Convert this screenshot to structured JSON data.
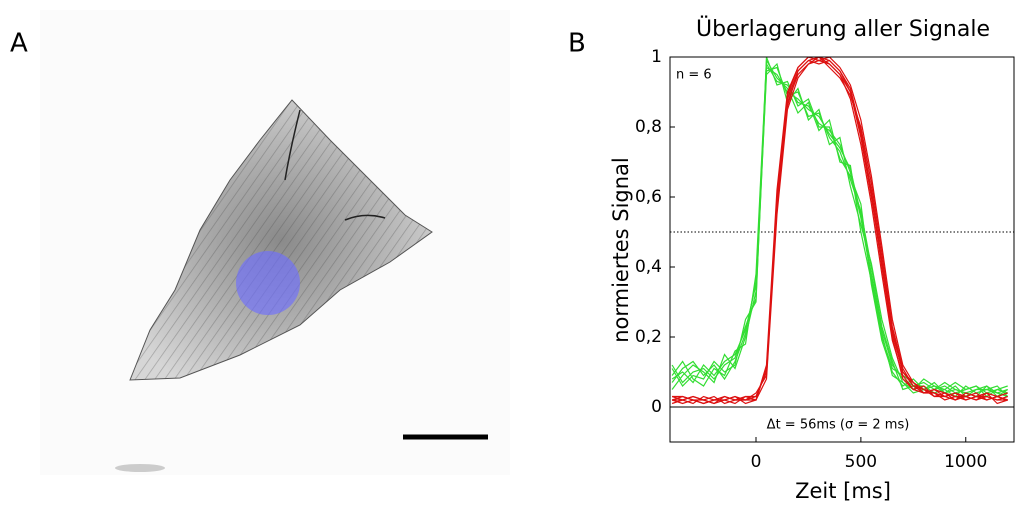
{
  "panel_labels": [
    "A",
    "B"
  ],
  "chart_data": {
    "type": "line",
    "title": "Überlagerung aller Signale",
    "xlabel": "Zeit [ms]",
    "ylabel": "normiertes Signal",
    "annotations": [
      "n = 6",
      "Δt = 56ms (σ = 2 ms)"
    ],
    "xlim": [
      -410,
      1230
    ],
    "ylim": [
      -0.1,
      1
    ],
    "xticks": [
      0,
      500,
      1000
    ],
    "yticks": [
      0,
      {
        "value": 0.2,
        "label": "0,2"
      },
      {
        "value": 0.4,
        "label": "0,4"
      },
      {
        "value": 0.6,
        "label": "0,6"
      },
      {
        "value": 0.8,
        "label": "0,8"
      },
      1
    ],
    "reference_lines": [
      {
        "y": 0.5,
        "style": "dotted"
      },
      {
        "y": 0,
        "style": "solid"
      }
    ],
    "x": [
      -400,
      -350,
      -300,
      -250,
      -200,
      -150,
      -100,
      -50,
      0,
      50,
      100,
      150,
      200,
      250,
      300,
      350,
      400,
      450,
      500,
      550,
      600,
      650,
      700,
      750,
      800,
      850,
      900,
      950,
      1000,
      1050,
      1100,
      1150,
      1200
    ],
    "series": [
      {
        "color": "#33dd33",
        "values": [
          0.08,
          0.1,
          0.07,
          0.12,
          0.09,
          0.13,
          0.15,
          0.22,
          0.35,
          0.97,
          0.95,
          0.9,
          0.88,
          0.85,
          0.83,
          0.78,
          0.74,
          0.68,
          0.55,
          0.38,
          0.22,
          0.12,
          0.08,
          0.06,
          0.07,
          0.05,
          0.06,
          0.04,
          0.05,
          0.06,
          0.04,
          0.05,
          0.04
        ]
      },
      {
        "color": "#33dd33",
        "values": [
          0.11,
          0.06,
          0.09,
          0.08,
          0.13,
          0.1,
          0.12,
          0.25,
          0.3,
          1.0,
          0.92,
          0.93,
          0.86,
          0.88,
          0.8,
          0.8,
          0.71,
          0.66,
          0.58,
          0.35,
          0.19,
          0.1,
          0.06,
          0.08,
          0.05,
          0.07,
          0.04,
          0.06,
          0.03,
          0.05,
          0.06,
          0.03,
          0.05
        ]
      },
      {
        "color": "#33dd33",
        "values": [
          0.05,
          0.09,
          0.12,
          0.1,
          0.07,
          0.15,
          0.11,
          0.2,
          0.33,
          0.95,
          0.98,
          0.87,
          0.91,
          0.82,
          0.85,
          0.75,
          0.77,
          0.63,
          0.52,
          0.41,
          0.25,
          0.14,
          0.07,
          0.05,
          0.08,
          0.06,
          0.05,
          0.03,
          0.06,
          0.04,
          0.05,
          0.06,
          0.03
        ]
      },
      {
        "color": "#33dd33",
        "values": [
          0.09,
          0.13,
          0.08,
          0.06,
          0.11,
          0.09,
          0.16,
          0.18,
          0.38,
          0.99,
          0.94,
          0.91,
          0.84,
          0.87,
          0.79,
          0.82,
          0.7,
          0.69,
          0.5,
          0.36,
          0.2,
          0.11,
          0.09,
          0.07,
          0.04,
          0.05,
          0.07,
          0.05,
          0.04,
          0.03,
          0.06,
          0.04,
          0.05
        ]
      },
      {
        "color": "#33dd33",
        "values": [
          0.12,
          0.07,
          0.1,
          0.11,
          0.08,
          0.12,
          0.14,
          0.23,
          0.31,
          0.96,
          0.97,
          0.89,
          0.9,
          0.83,
          0.84,
          0.77,
          0.73,
          0.65,
          0.56,
          0.4,
          0.23,
          0.13,
          0.05,
          0.06,
          0.06,
          0.04,
          0.05,
          0.07,
          0.05,
          0.06,
          0.03,
          0.05,
          0.06
        ]
      },
      {
        "color": "#33dd33",
        "values": [
          0.07,
          0.11,
          0.13,
          0.09,
          0.12,
          0.08,
          0.13,
          0.21,
          0.36,
          0.98,
          0.93,
          0.92,
          0.87,
          0.86,
          0.81,
          0.79,
          0.75,
          0.67,
          0.54,
          0.37,
          0.21,
          0.09,
          0.07,
          0.04,
          0.05,
          0.06,
          0.04,
          0.05,
          0.04,
          0.05,
          0.05,
          0.04,
          0.03
        ]
      },
      {
        "color": "#dd1111",
        "values": [
          0.02,
          0.03,
          0.02,
          0.01,
          0.02,
          0.03,
          0.02,
          0.02,
          0.03,
          0.1,
          0.6,
          0.88,
          0.96,
          0.99,
          1.0,
          0.99,
          0.96,
          0.9,
          0.78,
          0.62,
          0.42,
          0.22,
          0.1,
          0.06,
          0.05,
          0.04,
          0.03,
          0.04,
          0.03,
          0.02,
          0.03,
          0.02,
          0.03
        ]
      },
      {
        "color": "#dd1111",
        "values": [
          0.03,
          0.02,
          0.01,
          0.03,
          0.02,
          0.02,
          0.03,
          0.01,
          0.02,
          0.08,
          0.55,
          0.85,
          0.94,
          0.98,
          0.99,
          1.0,
          0.97,
          0.92,
          0.82,
          0.66,
          0.46,
          0.25,
          0.12,
          0.07,
          0.04,
          0.05,
          0.04,
          0.03,
          0.02,
          0.03,
          0.02,
          0.03,
          0.02
        ]
      },
      {
        "color": "#dd1111",
        "values": [
          0.01,
          0.02,
          0.03,
          0.02,
          0.01,
          0.02,
          0.01,
          0.03,
          0.02,
          0.12,
          0.62,
          0.9,
          0.97,
          1.0,
          0.99,
          0.98,
          0.95,
          0.88,
          0.75,
          0.58,
          0.38,
          0.19,
          0.09,
          0.05,
          0.06,
          0.03,
          0.04,
          0.02,
          0.04,
          0.03,
          0.04,
          0.01,
          0.02
        ]
      },
      {
        "color": "#dd1111",
        "values": [
          0.02,
          0.01,
          0.02,
          0.02,
          0.03,
          0.01,
          0.02,
          0.02,
          0.04,
          0.09,
          0.58,
          0.87,
          0.95,
          0.98,
          1.0,
          0.97,
          0.94,
          0.89,
          0.8,
          0.64,
          0.44,
          0.23,
          0.11,
          0.06,
          0.04,
          0.04,
          0.02,
          0.03,
          0.03,
          0.04,
          0.02,
          0.03,
          0.04
        ]
      },
      {
        "color": "#dd1111",
        "values": [
          0.03,
          0.03,
          0.02,
          0.01,
          0.02,
          0.02,
          0.03,
          0.02,
          0.02,
          0.11,
          0.57,
          0.86,
          0.96,
          0.99,
          0.98,
          0.99,
          0.96,
          0.91,
          0.79,
          0.61,
          0.4,
          0.21,
          0.1,
          0.07,
          0.05,
          0.03,
          0.03,
          0.04,
          0.02,
          0.03,
          0.03,
          0.02,
          0.02
        ]
      },
      {
        "color": "#dd1111",
        "values": [
          0.02,
          0.02,
          0.03,
          0.02,
          0.01,
          0.03,
          0.02,
          0.03,
          0.03,
          0.1,
          0.59,
          0.89,
          0.97,
          1.0,
          1.0,
          0.98,
          0.95,
          0.9,
          0.77,
          0.6,
          0.41,
          0.2,
          0.08,
          0.05,
          0.04,
          0.05,
          0.03,
          0.02,
          0.03,
          0.02,
          0.04,
          0.03,
          0.02
        ]
      }
    ]
  }
}
